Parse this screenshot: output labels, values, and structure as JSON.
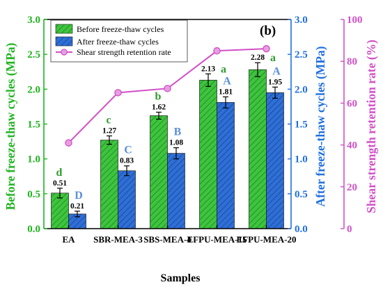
{
  "chart_data": {
    "type": "bar",
    "panel_label": "(b)",
    "categories": [
      "EA",
      "SBR-MEA-3",
      "SBS-MEA-4",
      "EFPU-MEA-15",
      "EFPU-MEA-20"
    ],
    "xlabel": "Samples",
    "ylabel_left": "Before freeze-thaw cycles (MPa)",
    "ylabel_right1": "After freeze-thaw cycles (MPa)",
    "ylabel_right2": "Shear strength retention rate (%)",
    "ylim": [
      0,
      3.0
    ],
    "ylim_right2": [
      0,
      100
    ],
    "yticks": [
      "0.0",
      "0.5",
      "1.0",
      "1.5",
      "2.0",
      "2.5",
      "3.0"
    ],
    "yticks_right2": [
      "0",
      "20",
      "40",
      "60",
      "80",
      "100"
    ],
    "series": [
      {
        "name": "Before freeze-thaw cycles",
        "color": "#3ec43e",
        "hatch": "diagonal",
        "values": [
          0.51,
          1.27,
          1.62,
          2.13,
          2.28
        ],
        "errors": [
          0.07,
          0.06,
          0.05,
          0.09,
          0.1
        ],
        "labels": [
          "0.51",
          "1.27",
          "1.62",
          "2.13",
          "2.28"
        ],
        "letters": [
          "d",
          "c",
          "b",
          "a",
          "a"
        ],
        "letter_color": "#2e9b2e"
      },
      {
        "name": "After freeze-thaw cycles",
        "color": "#2f6fd6",
        "hatch": "diagonal",
        "values": [
          0.21,
          0.83,
          1.08,
          1.81,
          1.95
        ],
        "errors": [
          0.04,
          0.07,
          0.08,
          0.08,
          0.08
        ],
        "labels": [
          "0.21",
          "0.83",
          "1.08",
          "1.81",
          "1.95"
        ],
        "letters": [
          "D",
          "C",
          "B",
          "A",
          "A"
        ],
        "letter_color": "#5b8fd8"
      },
      {
        "name": "Shear strength retention rate",
        "type": "line",
        "axis": "right2",
        "color": "#d24fc8",
        "marker_color": "#e79ee0",
        "values": [
          41,
          65,
          67,
          85,
          86
        ]
      }
    ],
    "legend_position": "top-left",
    "axis_colors": {
      "left": "#1fb41f",
      "right1": "#1f6fe0",
      "right2": "#d24fc8"
    }
  }
}
